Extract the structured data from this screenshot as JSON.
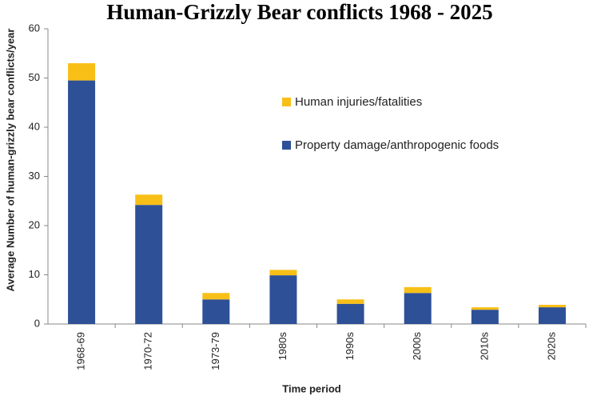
{
  "chart_data": {
    "type": "bar",
    "stacked": true,
    "title": "Human-Grizzly Bear conflicts 1968 - 2025",
    "x_label": "Time period",
    "y_label": "Average Number of human-grizzly bear conflicts/year",
    "categories": [
      "1968-69",
      "1970-72",
      "1973-79",
      "1980s",
      "1990s",
      "2000s",
      "2010s",
      "2020s"
    ],
    "series": [
      {
        "name": "Property damage/anthropogenic foods",
        "color": "#2e5097",
        "values": [
          49.5,
          24.2,
          5.0,
          9.9,
          4.1,
          6.3,
          2.9,
          3.4
        ]
      },
      {
        "name": "Human injuries/fatalities",
        "color": "#f8bf16",
        "values": [
          3.5,
          2.1,
          1.3,
          1.1,
          0.9,
          1.2,
          0.5,
          0.5
        ]
      }
    ],
    "ylim": [
      0,
      60
    ],
    "yticks": [
      0,
      10,
      20,
      30,
      40,
      50,
      60
    ],
    "grid": false
  }
}
